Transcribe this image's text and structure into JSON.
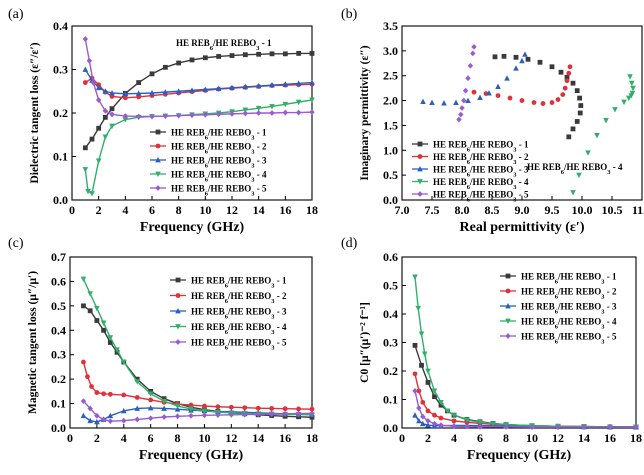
{
  "palette": {
    "s1": "#3a3a3a",
    "s2": "#e0303a",
    "s3": "#2a5fc0",
    "s4": "#2fb06a",
    "s5": "#9a5bd0"
  },
  "chart_data": [
    {
      "type": "line",
      "panel_label": "(a)",
      "xlabel": "Frequency (GHz)",
      "ylabel": "Dielectric tangent loss (ε″/ε′)",
      "xlim": [
        0,
        18
      ],
      "ylim": [
        0.0,
        0.4
      ],
      "xticks": [
        "0",
        "2",
        "4",
        "6",
        "8",
        "10",
        "12",
        "14",
        "16",
        "18"
      ],
      "yticks": [
        "0.0",
        "0.1",
        "0.2",
        "0.3",
        "0.4"
      ],
      "grid": false,
      "legend_position": "middle-right",
      "annotation": "HE REB6/HE REBO3 - 1",
      "series": [
        {
          "name": "HE REB6/HE REBO3 - 1",
          "color_key": "s1",
          "x": [
            1,
            1.5,
            2,
            2.5,
            3,
            4,
            5,
            6,
            7,
            8,
            9,
            10,
            11,
            12,
            13,
            14,
            15,
            16,
            17,
            18
          ],
          "y": [
            0.12,
            0.14,
            0.165,
            0.19,
            0.21,
            0.245,
            0.27,
            0.29,
            0.305,
            0.315,
            0.322,
            0.327,
            0.33,
            0.332,
            0.334,
            0.335,
            0.336,
            0.336,
            0.337,
            0.337
          ]
        },
        {
          "name": "HE REB6/HE REBO3 - 2",
          "color_key": "s2",
          "x": [
            1,
            1.5,
            2,
            2.5,
            3,
            4,
            5,
            6,
            7,
            8,
            9,
            10,
            11,
            12,
            13,
            14,
            15,
            16,
            17,
            18
          ],
          "y": [
            0.27,
            0.28,
            0.265,
            0.248,
            0.238,
            0.235,
            0.237,
            0.24,
            0.243,
            0.246,
            0.249,
            0.252,
            0.255,
            0.257,
            0.259,
            0.261,
            0.263,
            0.264,
            0.265,
            0.266
          ]
        },
        {
          "name": "HE REB6/HE REBO3 - 3",
          "color_key": "s3",
          "x": [
            1,
            1.5,
            2,
            2.5,
            3,
            4,
            5,
            6,
            7,
            8,
            9,
            10,
            11,
            12,
            13,
            14,
            15,
            16,
            17,
            18
          ],
          "y": [
            0.3,
            0.275,
            0.258,
            0.25,
            0.246,
            0.244,
            0.245,
            0.246,
            0.248,
            0.25,
            0.252,
            0.254,
            0.256,
            0.258,
            0.26,
            0.262,
            0.264,
            0.266,
            0.268,
            0.27
          ]
        },
        {
          "name": "HE REB6/HE REBO3 - 4",
          "color_key": "s4",
          "x": [
            1,
            1.2,
            1.5,
            2,
            2.5,
            3,
            4,
            5,
            6,
            7,
            8,
            9,
            10,
            11,
            12,
            13,
            14,
            15,
            16,
            17,
            18
          ],
          "y": [
            0.07,
            0.02,
            0.015,
            0.09,
            0.145,
            0.17,
            0.185,
            0.19,
            0.192,
            0.193,
            0.194,
            0.196,
            0.198,
            0.2,
            0.203,
            0.207,
            0.211,
            0.215,
            0.22,
            0.225,
            0.23
          ]
        },
        {
          "name": "HE REB6/HE REBO3 - 5",
          "color_key": "s5",
          "x": [
            1,
            1.3,
            1.6,
            2,
            2.5,
            3,
            4,
            5,
            6,
            7,
            8,
            9,
            10,
            11,
            12,
            13,
            14,
            15,
            16,
            17,
            18
          ],
          "y": [
            0.37,
            0.32,
            0.27,
            0.23,
            0.205,
            0.197,
            0.193,
            0.192,
            0.192,
            0.193,
            0.194,
            0.195,
            0.196,
            0.197,
            0.198,
            0.199,
            0.2,
            0.2,
            0.201,
            0.201,
            0.202
          ]
        }
      ]
    },
    {
      "type": "scatter",
      "panel_label": "(b)",
      "xlabel": "Real permittivity (ε′)",
      "ylabel": "Imaginary permittivity (ε″)",
      "xlim": [
        7.0,
        11.0
      ],
      "ylim": [
        0.0,
        3.5
      ],
      "xticks": [
        "7.0",
        "7.5",
        "8.0",
        "8.5",
        "9.0",
        "9.5",
        "10.0",
        "10.5",
        "11.0"
      ],
      "yticks": [
        "0.0",
        "0.5",
        "1.0",
        "1.5",
        "2.0",
        "2.5",
        "3.0",
        "3.5"
      ],
      "grid": false,
      "legend_position": "bottom-left",
      "annotation": "HE REB6/HE REBO3 - 4",
      "series": [
        {
          "name": "HE REB6/HE REBO3 - 1",
          "color_key": "s1",
          "x": [
            8.55,
            8.7,
            8.9,
            9.1,
            9.3,
            9.5,
            9.65,
            9.75,
            9.85,
            9.92,
            9.96,
            9.98,
            9.97,
            9.92,
            9.85,
            9.78
          ],
          "y": [
            2.88,
            2.89,
            2.87,
            2.83,
            2.77,
            2.68,
            2.57,
            2.47,
            2.35,
            2.2,
            2.05,
            1.9,
            1.75,
            1.58,
            1.43,
            1.27
          ]
        },
        {
          "name": "HE REB6/HE REBO3 - 2",
          "color_key": "s2",
          "x": [
            8.2,
            8.4,
            8.6,
            8.8,
            9.0,
            9.2,
            9.35,
            9.5,
            9.6,
            9.68,
            9.72,
            9.75,
            9.78,
            9.8
          ],
          "y": [
            2.17,
            2.14,
            2.1,
            2.05,
            2.0,
            1.96,
            1.94,
            1.96,
            2.02,
            2.12,
            2.25,
            2.4,
            2.55,
            2.68
          ]
        },
        {
          "name": "HE REB6/HE REBO3 - 3",
          "color_key": "s3",
          "x": [
            7.35,
            7.5,
            7.7,
            7.9,
            8.1,
            8.3,
            8.45,
            8.6,
            8.75,
            8.9,
            9.0,
            9.05
          ],
          "y": [
            1.98,
            1.96,
            1.95,
            1.96,
            2.0,
            2.06,
            2.15,
            2.28,
            2.45,
            2.65,
            2.8,
            2.93
          ]
        },
        {
          "name": "HE REB6/HE REBO3 - 4",
          "color_key": "s4",
          "x": [
            9.85,
            9.95,
            10.1,
            10.25,
            10.4,
            10.55,
            10.7,
            10.78,
            10.82,
            10.84,
            10.85,
            10.83,
            10.8
          ],
          "y": [
            0.15,
            0.5,
            0.95,
            1.3,
            1.6,
            1.82,
            1.97,
            2.05,
            2.1,
            2.15,
            2.25,
            2.35,
            2.48
          ]
        },
        {
          "name": "HE REB6/HE REBO3 - 5",
          "color_key": "s5",
          "x": [
            7.95,
            7.98,
            8.0,
            8.03,
            8.06,
            8.1,
            8.14,
            8.18,
            8.2
          ],
          "y": [
            1.62,
            1.72,
            1.85,
            2.0,
            2.2,
            2.45,
            2.7,
            2.95,
            3.08
          ]
        }
      ]
    },
    {
      "type": "line",
      "panel_label": "(c)",
      "xlabel": "Frequency (GHz)",
      "ylabel": "Magnetic tangent loss (μ″/μ′)",
      "xlim": [
        0,
        18
      ],
      "ylim": [
        0.0,
        0.7
      ],
      "xticks": [
        "0",
        "2",
        "4",
        "6",
        "8",
        "10",
        "12",
        "14",
        "16",
        "18"
      ],
      "yticks": [
        "0.0",
        "0.1",
        "0.2",
        "0.3",
        "0.4",
        "0.5",
        "0.6",
        "0.7"
      ],
      "grid": false,
      "legend_position": "top-right",
      "series": [
        {
          "name": "HE REB6/HE REBO3 - 1",
          "color_key": "s1",
          "x": [
            1,
            1.5,
            2,
            2.5,
            3,
            3.5,
            4,
            5,
            6,
            7,
            8,
            9,
            10,
            11,
            12,
            13,
            14,
            15,
            16,
            17,
            18
          ],
          "y": [
            0.5,
            0.48,
            0.44,
            0.4,
            0.35,
            0.31,
            0.27,
            0.2,
            0.15,
            0.12,
            0.1,
            0.085,
            0.075,
            0.068,
            0.062,
            0.058,
            0.054,
            0.051,
            0.048,
            0.046,
            0.044
          ]
        },
        {
          "name": "HE REB6/HE REBO3 - 2",
          "color_key": "s2",
          "x": [
            1,
            1.3,
            1.6,
            2,
            2.5,
            3,
            4,
            5,
            6,
            7,
            8,
            9,
            10,
            11,
            12,
            13,
            14,
            15,
            16,
            17,
            18
          ],
          "y": [
            0.27,
            0.21,
            0.17,
            0.145,
            0.14,
            0.138,
            0.135,
            0.125,
            0.115,
            0.105,
            0.098,
            0.094,
            0.09,
            0.087,
            0.085,
            0.083,
            0.081,
            0.08,
            0.079,
            0.078,
            0.077
          ]
        },
        {
          "name": "HE REB6/HE REBO3 - 3",
          "color_key": "s3",
          "x": [
            1,
            1.5,
            2,
            2.5,
            3,
            4,
            5,
            6,
            7,
            8,
            9,
            10,
            11,
            12,
            13,
            14,
            15,
            16,
            17,
            18
          ],
          "y": [
            0.05,
            0.03,
            0.025,
            0.035,
            0.05,
            0.07,
            0.08,
            0.082,
            0.08,
            0.077,
            0.073,
            0.07,
            0.068,
            0.066,
            0.064,
            0.062,
            0.06,
            0.058,
            0.056,
            0.055
          ]
        },
        {
          "name": "HE REB6/HE REBO3 - 4",
          "color_key": "s4",
          "x": [
            1,
            1.5,
            2,
            2.5,
            3,
            3.5,
            4,
            5,
            6,
            7,
            8,
            9,
            10,
            11,
            12,
            13,
            14,
            15,
            16,
            17,
            18
          ],
          "y": [
            0.61,
            0.55,
            0.49,
            0.43,
            0.37,
            0.32,
            0.27,
            0.19,
            0.14,
            0.11,
            0.09,
            0.078,
            0.07,
            0.065,
            0.062,
            0.06,
            0.058,
            0.057,
            0.056,
            0.055,
            0.054
          ]
        },
        {
          "name": "HE REB6/HE REBO3 - 5",
          "color_key": "s5",
          "x": [
            1,
            1.5,
            2,
            2.5,
            3,
            4,
            5,
            6,
            7,
            8,
            9,
            10,
            11,
            12,
            13,
            14,
            15,
            16,
            17,
            18
          ],
          "y": [
            0.11,
            0.08,
            0.05,
            0.035,
            0.028,
            0.03,
            0.035,
            0.04,
            0.045,
            0.048,
            0.05,
            0.052,
            0.053,
            0.054,
            0.055,
            0.056,
            0.057,
            0.058,
            0.059,
            0.06
          ]
        }
      ]
    },
    {
      "type": "line",
      "panel_label": "(d)",
      "xlabel": "Frequency (GHz)",
      "ylabel": "C0 [μ″(μ′)⁻² f⁻¹]",
      "xlim": [
        0,
        18
      ],
      "ylim": [
        0.0,
        0.6
      ],
      "xticks": [
        "0",
        "2",
        "4",
        "6",
        "8",
        "10",
        "12",
        "14",
        "16",
        "18"
      ],
      "yticks": [
        "0.0",
        "0.1",
        "0.2",
        "0.3",
        "0.4",
        "0.5",
        "0.6"
      ],
      "grid": false,
      "legend_position": "top-right",
      "series": [
        {
          "name": "HE REB6/HE REBO3 - 1",
          "color_key": "s1",
          "x": [
            1,
            1.5,
            2,
            2.5,
            3,
            3.5,
            4,
            5,
            6,
            7,
            8,
            10,
            12,
            14,
            16,
            18
          ],
          "y": [
            0.29,
            0.22,
            0.16,
            0.11,
            0.08,
            0.06,
            0.045,
            0.03,
            0.022,
            0.016,
            0.012,
            0.008,
            0.006,
            0.005,
            0.004,
            0.004
          ]
        },
        {
          "name": "HE REB6/HE REBO3 - 2",
          "color_key": "s2",
          "x": [
            1,
            1.3,
            1.6,
            2,
            2.5,
            3,
            4,
            5,
            6,
            7,
            8,
            10,
            12,
            14,
            16,
            18
          ],
          "y": [
            0.19,
            0.13,
            0.09,
            0.06,
            0.045,
            0.035,
            0.025,
            0.02,
            0.016,
            0.013,
            0.011,
            0.008,
            0.006,
            0.005,
            0.004,
            0.004
          ]
        },
        {
          "name": "HE REB6/HE REBO3 - 3",
          "color_key": "s3",
          "x": [
            1,
            1.3,
            1.6,
            2,
            2.5,
            3,
            4,
            5,
            6,
            8,
            10,
            12,
            14,
            16,
            18
          ],
          "y": [
            0.045,
            0.025,
            0.015,
            0.01,
            0.008,
            0.008,
            0.009,
            0.009,
            0.008,
            0.007,
            0.006,
            0.005,
            0.004,
            0.004,
            0.003
          ]
        },
        {
          "name": "HE REB6/HE REBO3 - 4",
          "color_key": "s4",
          "x": [
            1,
            1.25,
            1.5,
            1.75,
            2,
            2.5,
            3,
            3.5,
            4,
            5,
            6,
            7,
            8,
            10,
            12,
            14,
            16,
            18
          ],
          "y": [
            0.53,
            0.42,
            0.33,
            0.26,
            0.2,
            0.13,
            0.09,
            0.06,
            0.045,
            0.028,
            0.02,
            0.015,
            0.012,
            0.008,
            0.006,
            0.005,
            0.004,
            0.004
          ]
        },
        {
          "name": "HE REB6/HE REBO3 - 5",
          "color_key": "s5",
          "x": [
            1,
            1.3,
            1.6,
            2,
            2.5,
            3,
            4,
            5,
            6,
            8,
            10,
            12,
            14,
            16,
            18
          ],
          "y": [
            0.13,
            0.07,
            0.04,
            0.025,
            0.015,
            0.01,
            0.006,
            0.005,
            0.004,
            0.004,
            0.003,
            0.003,
            0.003,
            0.003,
            0.003
          ]
        }
      ]
    }
  ]
}
